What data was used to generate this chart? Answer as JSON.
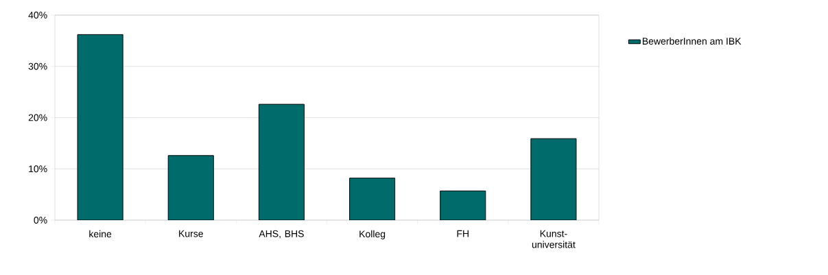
{
  "chart_data": {
    "type": "bar",
    "categories": [
      "keine",
      "Kurse",
      "AHS, BHS",
      "Kolleg",
      "FH",
      "Kunst-universität"
    ],
    "series": [
      {
        "name": "BewerberInnen am IBK",
        "color": "#006b6b",
        "values": [
          36.2,
          12.6,
          22.6,
          8.2,
          5.7,
          15.9
        ]
      }
    ],
    "ylim": [
      0,
      40
    ],
    "yticks": [
      {
        "value": 0,
        "label": "0%"
      },
      {
        "value": 10,
        "label": "10%"
      },
      {
        "value": 20,
        "label": "20%"
      },
      {
        "value": 30,
        "label": "30%"
      },
      {
        "value": 40,
        "label": "40%"
      }
    ],
    "grid": "y",
    "legend": "top right"
  }
}
